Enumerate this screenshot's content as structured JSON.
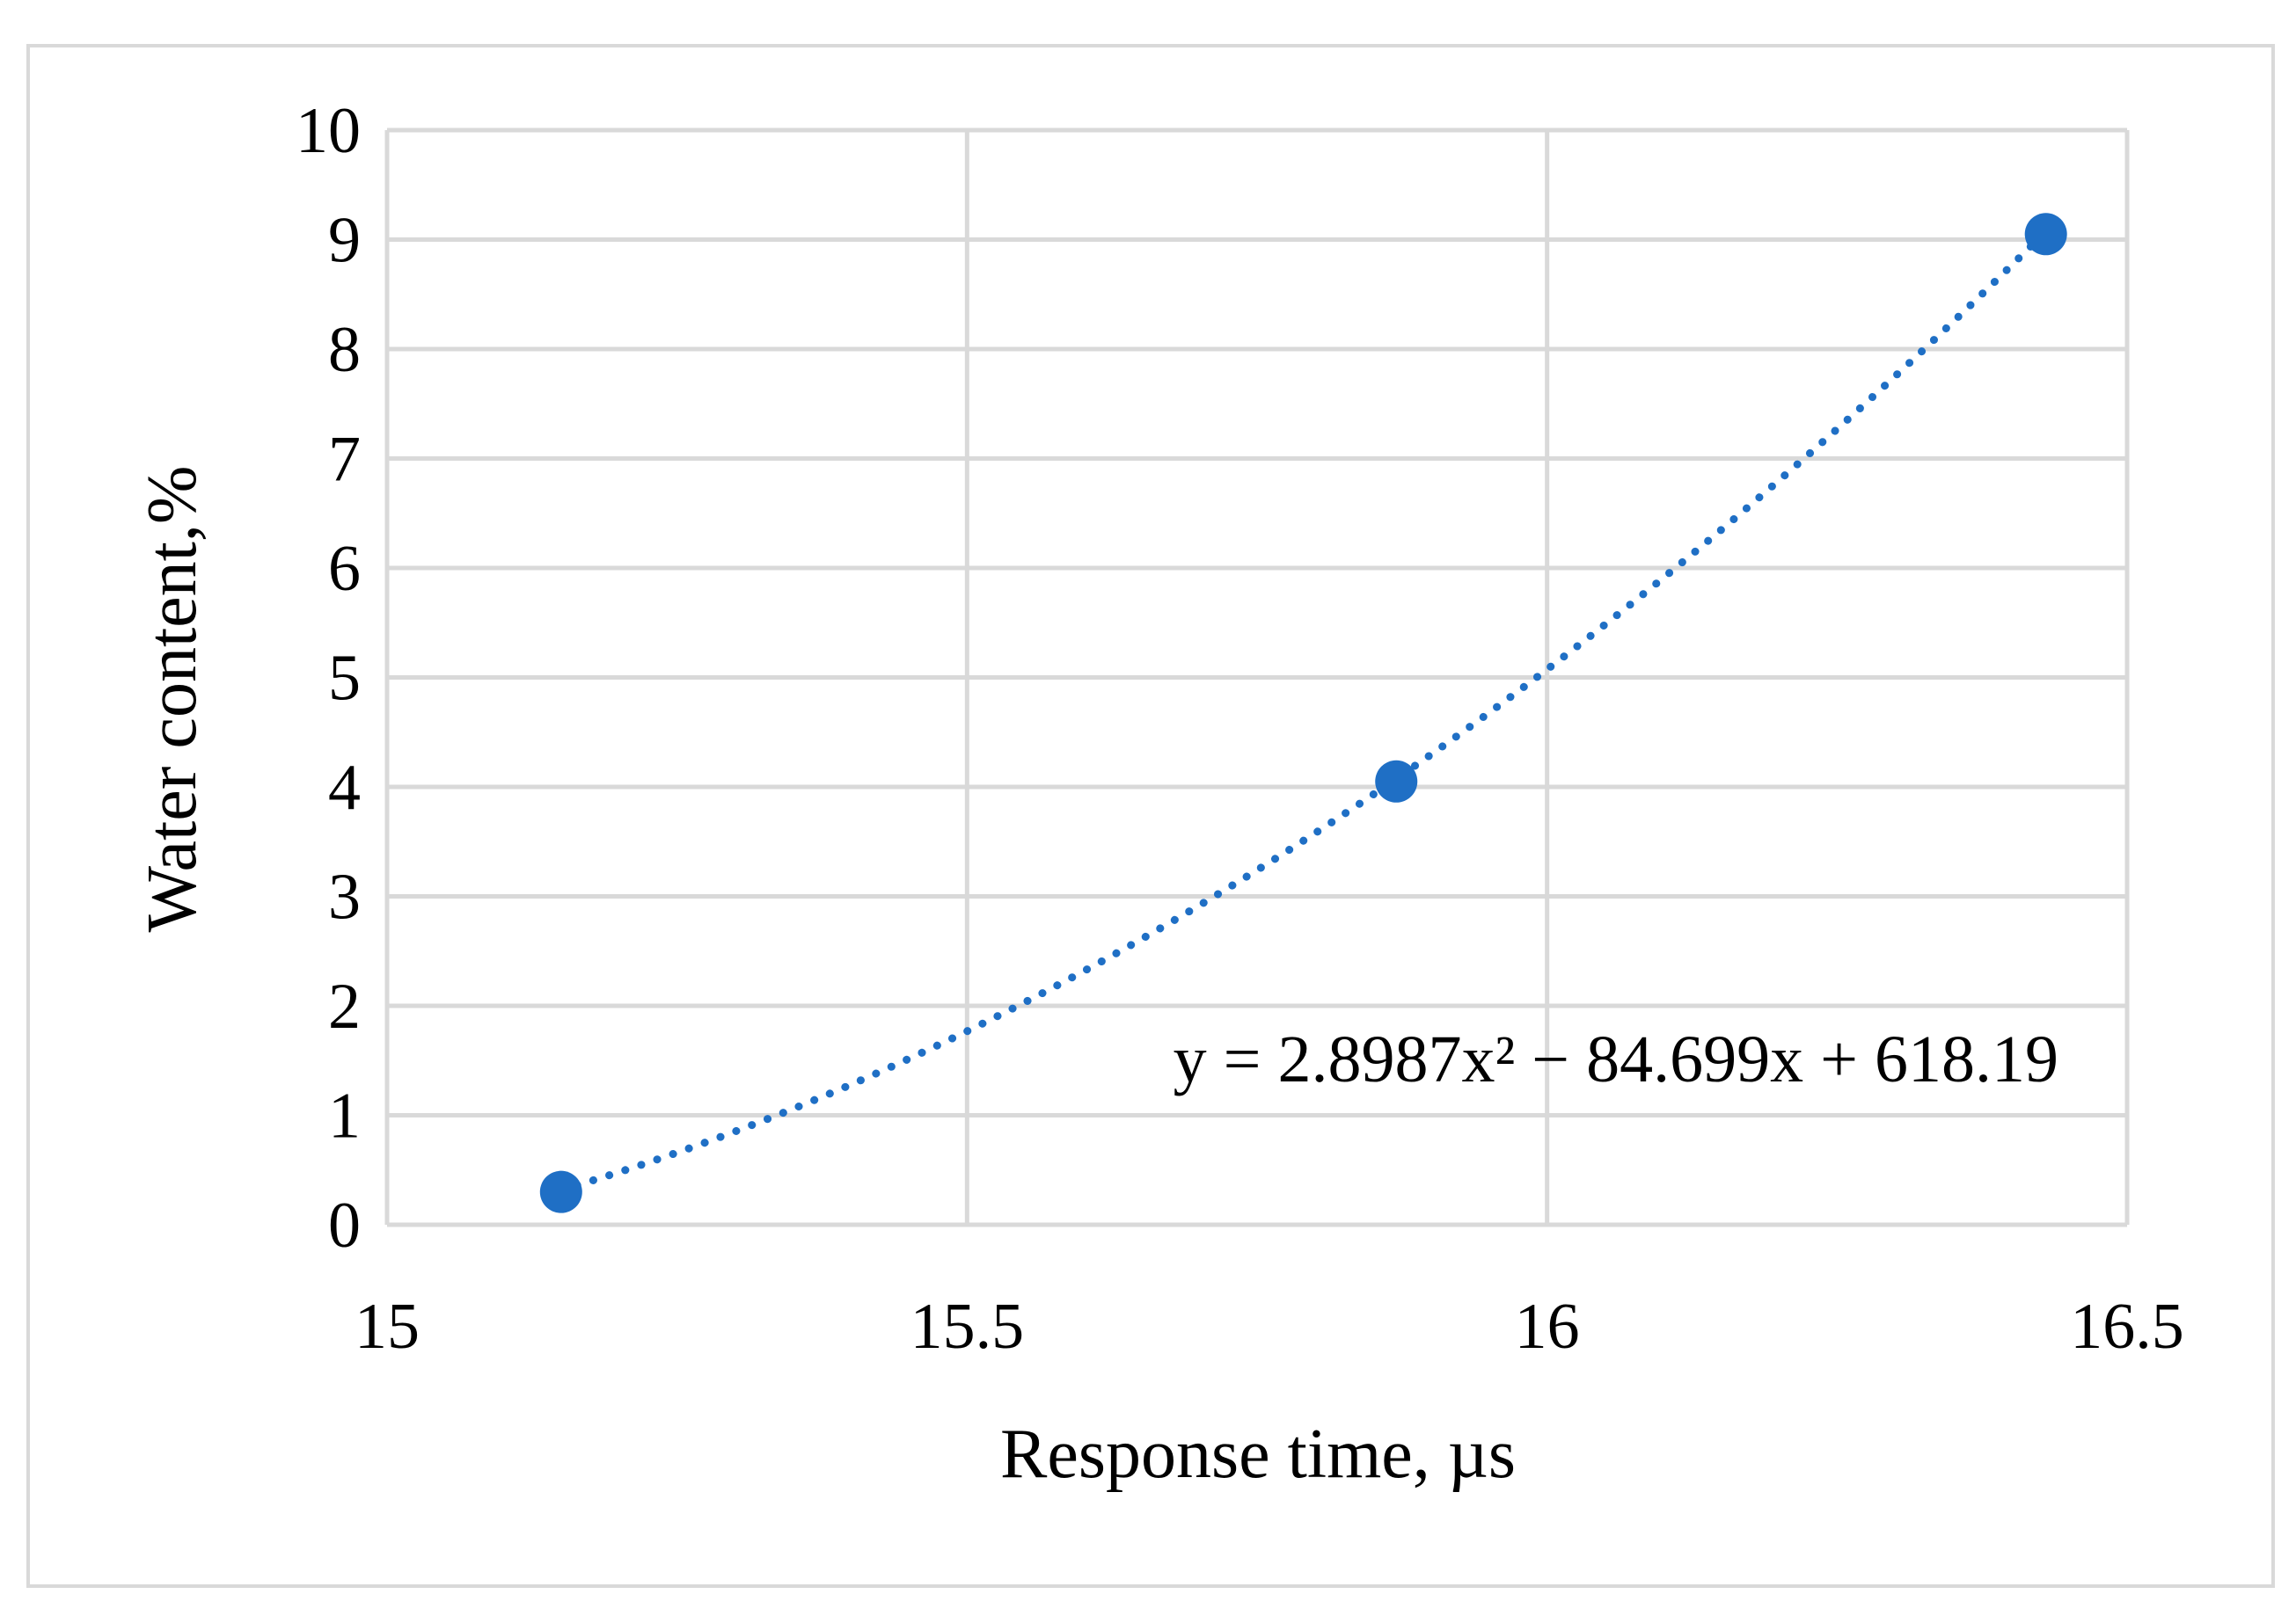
{
  "chart_data": {
    "type": "scatter",
    "title": "",
    "xlabel": "Response time, µs",
    "ylabel": "Water content,%",
    "xlim": [
      15,
      16.5
    ],
    "ylim": [
      0,
      10
    ],
    "x_ticks": [
      "15",
      "15.5",
      "16",
      "16.5"
    ],
    "y_ticks": [
      "0",
      "1",
      "2",
      "3",
      "4",
      "5",
      "6",
      "7",
      "8",
      "9",
      "10"
    ],
    "grid": true,
    "legend": "none",
    "series": [
      {
        "x": [
          15.15,
          15.87,
          16.43
        ],
        "y": [
          0.3,
          4.05,
          9.05
        ],
        "color": "#1f6fc5"
      }
    ],
    "trendline": {
      "type": "polynomial",
      "order": 2,
      "style": "dotted",
      "color": "#1f6fc5",
      "coefficients": [
        2.8987,
        -84.699,
        618.19
      ],
      "x_range": [
        15.15,
        16.43
      ],
      "equation_label": "y = 2.8987x² − 84.699x + 618.19"
    }
  }
}
